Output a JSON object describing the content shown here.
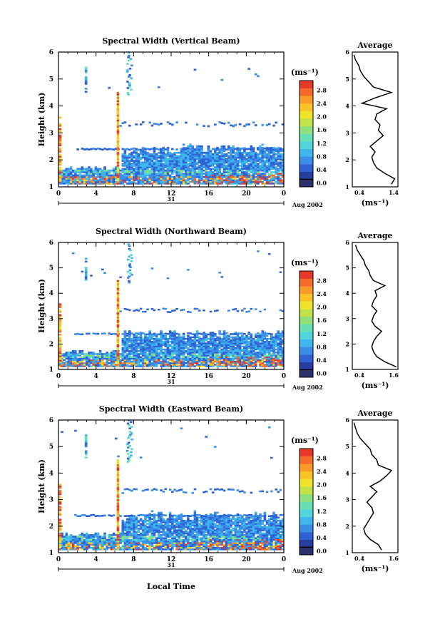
{
  "figure": {
    "xlabel": "Local Time",
    "date_day": "31",
    "date_month": "Aug 2002"
  },
  "colorbar_unit": "(ms⁻¹)",
  "colors": [
    "#2b2f6a",
    "#273ea0",
    "#2f62d5",
    "#3a8ee6",
    "#3fb7ec",
    "#52d6db",
    "#66e0b2",
    "#8ee07d",
    "#c2e24a",
    "#efe42c",
    "#fbc32a",
    "#f99a2a",
    "#f56b2a",
    "#e53a2a"
  ],
  "chart_data": [
    {
      "type": "heatmap",
      "title": "Spectral Width (Vertical Beam)",
      "xlabel": "",
      "ylabel": "Height (km)",
      "xlim": [
        0,
        24
      ],
      "ylim": [
        1,
        6
      ],
      "xticks": [
        "0",
        "4",
        "8",
        "12",
        "16",
        "20",
        "0"
      ],
      "yticks": [
        "1",
        "2",
        "3",
        "4",
        "5",
        "6"
      ],
      "colorbar": {
        "unit": "(ms⁻¹)",
        "ticks": [
          "0.0",
          "0.4",
          "0.8",
          "1.2",
          "1.6",
          "2.0",
          "2.4",
          "2.8"
        ]
      },
      "profile": {
        "title": "Average",
        "xlabel": "(ms⁻¹)",
        "xticks": [
          "0.4",
          "1.4"
        ],
        "xlim": [
          0.2,
          1.6
        ],
        "height": [
          1.1,
          1.3,
          1.5,
          1.7,
          1.9,
          2.1,
          2.3,
          2.5,
          2.7,
          2.9,
          3.1,
          3.3,
          3.5,
          3.7,
          3.9,
          4.1,
          4.3,
          4.5,
          4.7,
          4.9,
          5.1,
          5.3,
          5.5,
          5.7,
          5.9
        ],
        "value": [
          1.4,
          1.5,
          1.2,
          0.95,
          0.85,
          0.8,
          0.9,
          0.75,
          0.95,
          1.15,
          1.0,
          1.05,
          0.9,
          0.95,
          1.25,
          0.5,
          0.9,
          1.4,
          0.85,
          0.7,
          0.55,
          0.45,
          0.4,
          0.3,
          0.25
        ]
      }
    },
    {
      "type": "heatmap",
      "title": "Spectral Width (Northward Beam)",
      "xlabel": "",
      "ylabel": "Height (km)",
      "xlim": [
        0,
        24
      ],
      "ylim": [
        1,
        6
      ],
      "xticks": [
        "0",
        "4",
        "8",
        "12",
        "16",
        "20",
        "0"
      ],
      "yticks": [
        "1",
        "2",
        "3",
        "4",
        "5",
        "6"
      ],
      "colorbar": {
        "unit": "(ms⁻¹)",
        "ticks": [
          "0.0",
          "0.4",
          "0.8",
          "1.2",
          "1.6",
          "2.0",
          "2.4",
          "2.8"
        ]
      },
      "profile": {
        "title": "Average",
        "xlabel": "(ms⁻¹)",
        "xticks": [
          "0.4",
          "1.6"
        ],
        "xlim": [
          0.2,
          1.6
        ],
        "height": [
          1.1,
          1.3,
          1.5,
          1.7,
          1.9,
          2.1,
          2.3,
          2.5,
          2.7,
          2.9,
          3.1,
          3.3,
          3.5,
          3.7,
          3.9,
          4.1,
          4.3,
          4.5,
          4.7,
          4.9,
          5.1,
          5.3,
          5.5,
          5.7,
          5.9
        ],
        "value": [
          1.55,
          1.2,
          0.95,
          0.85,
          0.8,
          0.85,
          0.95,
          1.1,
          0.9,
          0.8,
          0.85,
          0.95,
          0.8,
          0.85,
          0.95,
          0.9,
          1.2,
          0.85,
          0.75,
          0.7,
          0.6,
          0.55,
          0.45,
          0.35,
          0.3
        ]
      }
    },
    {
      "type": "heatmap",
      "title": "Spectral Width (Eastward Beam)",
      "xlabel": "Local Time",
      "ylabel": "Height (km)",
      "xlim": [
        0,
        24
      ],
      "ylim": [
        1,
        6
      ],
      "xticks": [
        "0",
        "4",
        "8",
        "12",
        "16",
        "20",
        "0"
      ],
      "yticks": [
        "1",
        "2",
        "3",
        "4",
        "5",
        "6"
      ],
      "colorbar": {
        "unit": "(ms⁻¹)",
        "ticks": [
          "0.0",
          "0.4",
          "0.8",
          "1.2",
          "1.6",
          "2.0",
          "2.4",
          "2.8"
        ]
      },
      "profile": {
        "title": "Average",
        "xlabel": "(ms⁻¹)",
        "xticks": [
          "0.4",
          "1.6"
        ],
        "xlim": [
          0.2,
          1.6
        ],
        "height": [
          1.1,
          1.3,
          1.5,
          1.7,
          1.9,
          2.1,
          2.3,
          2.5,
          2.7,
          2.9,
          3.1,
          3.3,
          3.5,
          3.7,
          3.9,
          4.1,
          4.3,
          4.5,
          4.7,
          4.9,
          5.1,
          5.3,
          5.5,
          5.7,
          5.9
        ],
        "value": [
          1.1,
          1.0,
          0.75,
          0.6,
          0.55,
          0.65,
          0.75,
          0.85,
          0.8,
          0.65,
          0.8,
          0.95,
          0.75,
          1.05,
          1.25,
          1.4,
          1.0,
          0.95,
          0.8,
          0.75,
          0.6,
          0.45,
          0.35,
          0.3,
          0.25
        ]
      }
    }
  ]
}
